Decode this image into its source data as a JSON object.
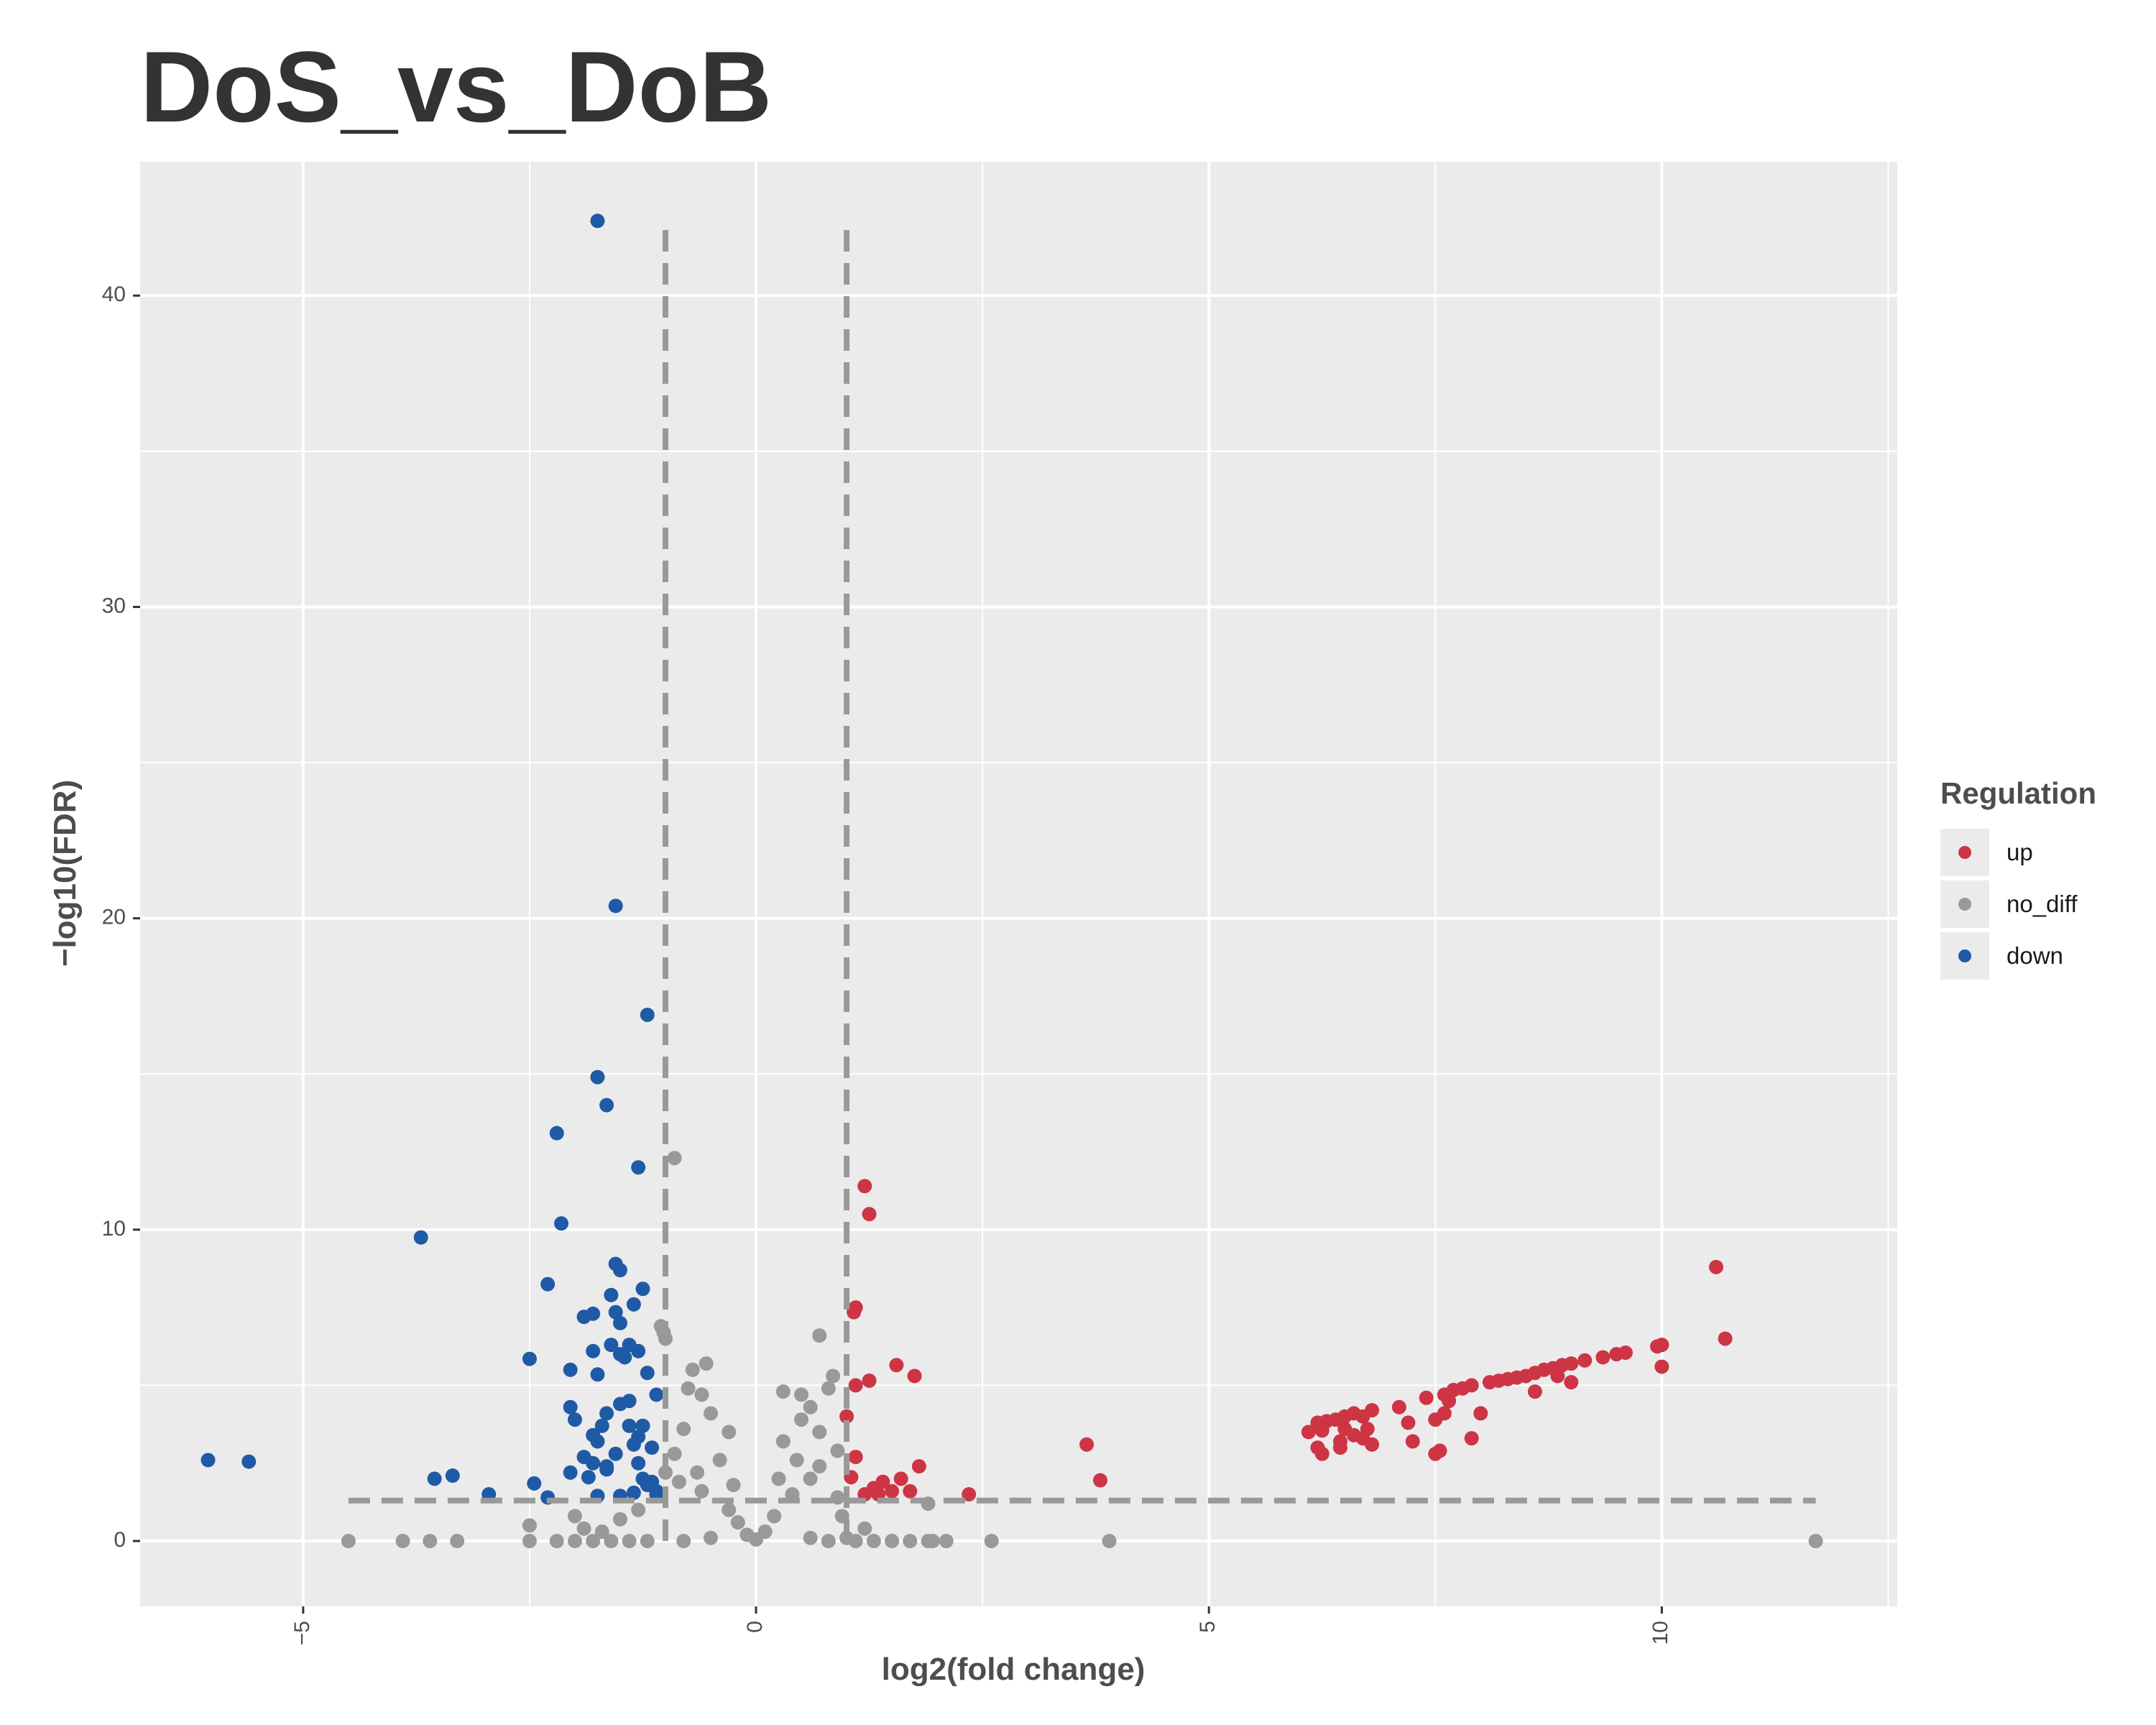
{
  "title": "DoS_vs_DoB",
  "chart_data": {
    "type": "scatter",
    "title": "DoS_vs_DoB",
    "xlabel": "log2(fold change)",
    "ylabel": "-log10(FDR)",
    "xlim": [
      -6.8,
      12.6
    ],
    "ylim": [
      -2.1,
      44.3
    ],
    "x_ticks": [
      -5,
      0,
      5,
      10
    ],
    "y_ticks": [
      0,
      10,
      20,
      30,
      40
    ],
    "grid": true,
    "legend_position": "right",
    "legend_title": "Regulation",
    "thresholds": {
      "log2fc": [
        -1,
        1
      ],
      "neg_log10_fdr": 1.3
    },
    "colors": {
      "up": "#cd3545",
      "no_diff": "#999999",
      "down": "#1f5aa6",
      "panel": "#ebebeb",
      "grid": "#ffffff",
      "threshold_line": "#999999"
    },
    "series": [
      {
        "name": "up",
        "points": [
          [
            10.6,
            8.8
          ],
          [
            10.7,
            6.5
          ],
          [
            10.0,
            6.3
          ],
          [
            9.95,
            6.25
          ],
          [
            9.6,
            6.05
          ],
          [
            9.5,
            6.0
          ],
          [
            9.35,
            5.9
          ],
          [
            9.15,
            5.8
          ],
          [
            9.0,
            5.7
          ],
          [
            8.9,
            5.65
          ],
          [
            8.8,
            5.55
          ],
          [
            8.7,
            5.5
          ],
          [
            8.6,
            5.4
          ],
          [
            8.5,
            5.3
          ],
          [
            8.4,
            5.25
          ],
          [
            8.3,
            5.2
          ],
          [
            8.2,
            5.15
          ],
          [
            8.1,
            5.1
          ],
          [
            9.0,
            5.1
          ],
          [
            8.85,
            5.3
          ],
          [
            8.6,
            4.8
          ],
          [
            10.0,
            5.6
          ],
          [
            7.9,
            5.0
          ],
          [
            7.8,
            4.9
          ],
          [
            7.7,
            4.85
          ],
          [
            7.6,
            4.7
          ],
          [
            7.4,
            4.6
          ],
          [
            7.65,
            4.5
          ],
          [
            7.6,
            4.1
          ],
          [
            8.0,
            4.1
          ],
          [
            7.5,
            3.9
          ],
          [
            7.2,
            3.8
          ],
          [
            7.1,
            4.3
          ],
          [
            7.9,
            3.3
          ],
          [
            7.5,
            2.8
          ],
          [
            7.55,
            2.9
          ],
          [
            6.8,
            4.2
          ],
          [
            6.7,
            4.0
          ],
          [
            6.6,
            4.1
          ],
          [
            6.5,
            4.0
          ],
          [
            6.4,
            3.9
          ],
          [
            6.3,
            3.85
          ],
          [
            6.2,
            3.8
          ],
          [
            6.1,
            3.5
          ],
          [
            6.25,
            3.55
          ],
          [
            6.5,
            3.6
          ],
          [
            6.6,
            3.4
          ],
          [
            6.7,
            3.3
          ],
          [
            6.45,
            3.2
          ],
          [
            6.2,
            3.0
          ],
          [
            6.45,
            3.0
          ],
          [
            6.25,
            2.8
          ],
          [
            6.8,
            3.1
          ],
          [
            7.25,
            3.2
          ],
          [
            6.75,
            3.6
          ],
          [
            3.65,
            3.1
          ],
          [
            3.8,
            1.95
          ],
          [
            2.35,
            1.5
          ],
          [
            1.8,
            2.4
          ],
          [
            1.75,
            5.3
          ],
          [
            1.55,
            5.65
          ],
          [
            1.25,
            5.15
          ],
          [
            1.1,
            5.0
          ],
          [
            1.2,
            11.4
          ],
          [
            1.25,
            10.5
          ],
          [
            1.1,
            7.5
          ],
          [
            1.08,
            7.35
          ],
          [
            1.0,
            4.0
          ],
          [
            1.1,
            2.7
          ],
          [
            1.3,
            1.7
          ],
          [
            1.4,
            1.9
          ],
          [
            1.5,
            1.6
          ],
          [
            1.6,
            2.0
          ],
          [
            1.7,
            1.6
          ],
          [
            1.35,
            1.5
          ],
          [
            1.2,
            1.5
          ],
          [
            1.05,
            2.05
          ]
        ]
      },
      {
        "name": "no_diff",
        "points": [
          [
            11.7,
            0.0
          ],
          [
            3.9,
            0.0
          ],
          [
            2.6,
            0.0
          ],
          [
            2.1,
            0.0
          ],
          [
            1.9,
            0.0
          ],
          [
            1.7,
            0.0
          ],
          [
            1.5,
            0.0
          ],
          [
            1.3,
            0.0
          ],
          [
            1.1,
            0.0
          ],
          [
            1.9,
            1.2
          ],
          [
            -4.5,
            0.0
          ],
          [
            -3.9,
            0.0
          ],
          [
            -3.6,
            0.0
          ],
          [
            -3.3,
            0.0
          ],
          [
            -2.5,
            0.5
          ],
          [
            -2.5,
            0.0
          ],
          [
            -2.2,
            0.0
          ],
          [
            -2.0,
            0.0
          ],
          [
            -1.8,
            0.0
          ],
          [
            -1.6,
            0.0
          ],
          [
            -1.4,
            0.0
          ],
          [
            -1.2,
            0.0
          ],
          [
            -0.9,
            12.3
          ],
          [
            -1.05,
            6.9
          ],
          [
            -1.0,
            6.5
          ],
          [
            -1.02,
            6.7
          ],
          [
            -0.7,
            5.5
          ],
          [
            -0.55,
            5.7
          ],
          [
            -0.6,
            4.7
          ],
          [
            -0.75,
            4.9
          ],
          [
            0.3,
            4.8
          ],
          [
            0.5,
            4.7
          ],
          [
            0.7,
            6.6
          ],
          [
            0.85,
            5.3
          ],
          [
            0.8,
            4.9
          ],
          [
            0.6,
            4.3
          ],
          [
            0.7,
            3.5
          ],
          [
            0.9,
            2.9
          ],
          [
            0.5,
            3.9
          ],
          [
            0.3,
            3.2
          ],
          [
            -0.3,
            3.5
          ],
          [
            -0.5,
            4.1
          ],
          [
            -0.8,
            3.6
          ],
          [
            -0.9,
            2.8
          ],
          [
            -1.0,
            2.2
          ],
          [
            -0.85,
            1.9
          ],
          [
            0.4,
            1.5
          ],
          [
            0.6,
            2.0
          ],
          [
            0.9,
            1.4
          ],
          [
            -0.6,
            1.6
          ],
          [
            -0.3,
            1.0
          ],
          [
            0.2,
            0.8
          ],
          [
            -0.2,
            0.6
          ],
          [
            0.1,
            0.3
          ],
          [
            -0.1,
            0.2
          ],
          [
            0.0,
            0.05
          ],
          [
            -0.5,
            0.1
          ],
          [
            0.6,
            0.1
          ],
          [
            0.8,
            0.0
          ],
          [
            -0.8,
            0.0
          ],
          [
            -1.5,
            0.7
          ],
          [
            -1.3,
            1.0
          ],
          [
            -1.9,
            0.4
          ],
          [
            -1.7,
            0.3
          ],
          [
            -2.0,
            0.8
          ],
          [
            1.0,
            0.1
          ],
          [
            1.2,
            0.4
          ],
          [
            0.95,
            0.8
          ],
          [
            -0.4,
            2.6
          ],
          [
            0.45,
            2.6
          ],
          [
            -0.65,
            2.2
          ],
          [
            0.7,
            2.4
          ],
          [
            0.25,
            2.0
          ],
          [
            -0.25,
            1.8
          ],
          [
            1.95,
            0.0
          ]
        ]
      },
      {
        "name": "down",
        "points": [
          [
            -1.75,
            42.4
          ],
          [
            -1.55,
            20.4
          ],
          [
            -1.2,
            16.9
          ],
          [
            -1.75,
            14.9
          ],
          [
            -1.65,
            14.0
          ],
          [
            -2.2,
            13.1
          ],
          [
            -1.3,
            12.0
          ],
          [
            -2.15,
            10.2
          ],
          [
            -3.7,
            9.75
          ],
          [
            -1.55,
            8.9
          ],
          [
            -1.5,
            8.7
          ],
          [
            -1.25,
            8.1
          ],
          [
            -2.3,
            8.25
          ],
          [
            -1.6,
            7.9
          ],
          [
            -1.35,
            7.6
          ],
          [
            -1.8,
            7.3
          ],
          [
            -1.9,
            7.2
          ],
          [
            -1.55,
            7.35
          ],
          [
            -1.5,
            7.0
          ],
          [
            -1.4,
            6.3
          ],
          [
            -1.6,
            6.3
          ],
          [
            -1.8,
            6.1
          ],
          [
            -1.3,
            6.1
          ],
          [
            -1.5,
            6.0
          ],
          [
            -1.45,
            5.9
          ],
          [
            -2.5,
            5.85
          ],
          [
            -2.05,
            5.5
          ],
          [
            -1.2,
            5.4
          ],
          [
            -1.75,
            5.35
          ],
          [
            -1.1,
            4.7
          ],
          [
            -1.4,
            4.5
          ],
          [
            -1.5,
            4.4
          ],
          [
            -2.05,
            4.3
          ],
          [
            -1.65,
            4.1
          ],
          [
            -2.0,
            3.9
          ],
          [
            -1.7,
            3.7
          ],
          [
            -1.4,
            3.7
          ],
          [
            -1.25,
            3.7
          ],
          [
            -1.8,
            3.4
          ],
          [
            -1.75,
            3.2
          ],
          [
            -1.3,
            3.35
          ],
          [
            -1.15,
            3.0
          ],
          [
            -1.35,
            3.1
          ],
          [
            -1.9,
            2.7
          ],
          [
            -1.8,
            2.5
          ],
          [
            -1.65,
            2.4
          ],
          [
            -2.05,
            2.2
          ],
          [
            -1.85,
            2.05
          ],
          [
            -1.65,
            2.3
          ],
          [
            -1.25,
            2.0
          ],
          [
            -1.15,
            1.9
          ],
          [
            -1.1,
            1.5
          ],
          [
            -1.35,
            1.55
          ],
          [
            -1.5,
            1.45
          ],
          [
            -1.75,
            1.45
          ],
          [
            -2.3,
            1.4
          ],
          [
            -2.45,
            1.85
          ],
          [
            -2.95,
            1.5
          ],
          [
            -3.35,
            2.1
          ],
          [
            -3.55,
            2.0
          ],
          [
            -5.6,
            2.55
          ],
          [
            -6.05,
            2.6
          ],
          [
            -1.2,
            1.8
          ],
          [
            -1.3,
            2.5
          ],
          [
            -1.55,
            2.8
          ],
          [
            -1.1,
            1.6
          ]
        ]
      }
    ]
  }
}
